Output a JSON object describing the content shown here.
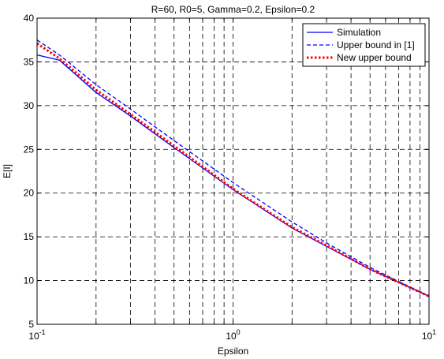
{
  "chart_data": {
    "type": "line",
    "title": "R=60, R0=5, Gamma=0.2, Epsilon=0.2",
    "xlabel": "Epsilon",
    "ylabel": "E[I]",
    "xscale": "log",
    "xlim": [
      0.1,
      10
    ],
    "ylim": [
      5,
      40
    ],
    "grid": true,
    "grid_style": "dashed",
    "legend_position": "top-right",
    "x_ticks": [
      {
        "value": 0.1,
        "base": "10",
        "exp": "-1"
      },
      {
        "value": 1,
        "base": "10",
        "exp": "0"
      },
      {
        "value": 10,
        "base": "10",
        "exp": "1"
      }
    ],
    "y_ticks": [
      "5",
      "10",
      "15",
      "20",
      "25",
      "30",
      "35",
      "40"
    ],
    "series": [
      {
        "name": "Simulation",
        "color": "#0000ff",
        "style": "solid",
        "x": [
          0.1,
          0.13,
          0.2,
          0.3,
          0.5,
          1,
          2,
          3,
          5,
          7,
          10
        ],
        "y": [
          35.8,
          35.2,
          31.5,
          28.8,
          25.2,
          20.4,
          16.0,
          13.9,
          11.3,
          9.8,
          8.2
        ]
      },
      {
        "name": "Upper bound in [1]",
        "color": "#0000ff",
        "style": "dashed",
        "x": [
          0.1,
          0.13,
          0.2,
          0.3,
          0.5,
          1,
          2,
          3,
          5,
          7,
          10
        ],
        "y": [
          37.5,
          35.8,
          32.4,
          29.6,
          26.0,
          21.2,
          16.7,
          14.3,
          11.5,
          9.9,
          8.2
        ]
      },
      {
        "name": "New upper bound",
        "color": "#ff0000",
        "style": "dotted",
        "x": [
          0.1,
          0.13,
          0.2,
          0.3,
          0.5,
          1,
          2,
          3,
          5,
          7,
          10
        ],
        "y": [
          37.1,
          35.4,
          31.8,
          29.0,
          25.4,
          20.5,
          16.1,
          14.0,
          11.3,
          9.8,
          8.2
        ]
      }
    ]
  }
}
